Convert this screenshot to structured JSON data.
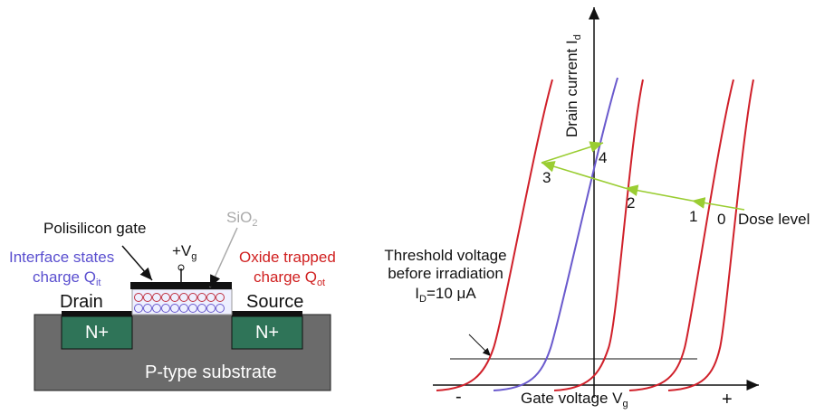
{
  "mosfet": {
    "gate_label": "Polisilicon gate",
    "oxide_label": {
      "text": "SiO",
      "sub": "2"
    },
    "gate_voltage": {
      "text": "+V",
      "sub": "g"
    },
    "interface_label": {
      "line1": "Interface states",
      "line2": "charge Q",
      "sub": "it"
    },
    "oxide_trapped_label": {
      "line1": "Oxide trapped",
      "line2": "charge Q",
      "sub": "ot"
    },
    "drain": "Drain",
    "source": "Source",
    "wells": [
      "N+",
      "N+"
    ],
    "substrate": "P-type substrate"
  },
  "iv_plot": {
    "y_axis": {
      "text": "Drain current I",
      "sub": "d"
    },
    "x_axis": {
      "text": "Gate voltage V",
      "sub": "g"
    },
    "x_minus": "-",
    "x_plus": "+",
    "threshold": {
      "line1": "Threshold voltage",
      "line2": "before irradiation",
      "line3_pre": "I",
      "line3_sub": "D",
      "line3_post": "=10 μA"
    },
    "curve_labels": [
      "0",
      "1",
      "2",
      "3",
      "4"
    ],
    "dose_label": "Dose level"
  }
}
